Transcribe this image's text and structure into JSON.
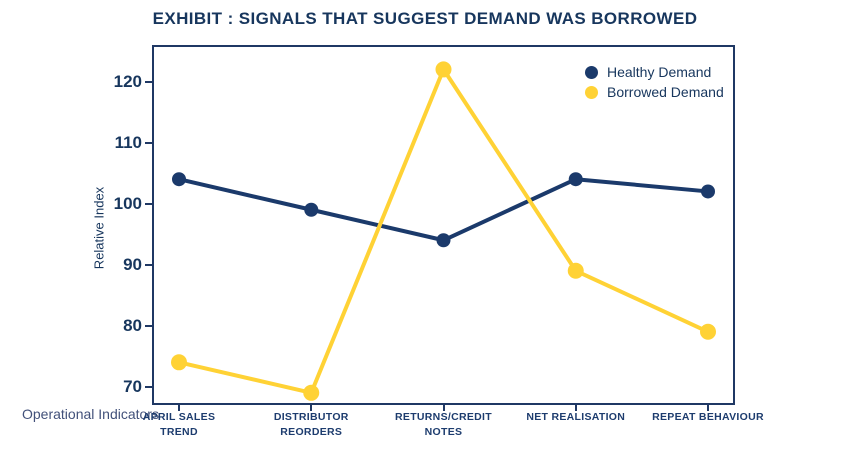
{
  "colors": {
    "navy": "#1b3a6b",
    "yellow": "#ffd235",
    "title_text": "#17365d",
    "axis_text": "#1d3c6e",
    "muted_label": "#42517a",
    "plot_border": "#1f3864"
  },
  "chart_data": {
    "type": "line",
    "title": "EXHIBIT : SIGNALS THAT SUGGEST DEMAND WAS BORROWED",
    "xlabel": "Operational Indicators",
    "ylabel": "Relative Index",
    "categories": [
      "APRIL SALES\nTREND",
      "DISTRIBUTOR\nREORDERS",
      "RETURNS/CREDIT\nNOTES",
      "NET REALISATION",
      "REPEAT BEHAVIOUR"
    ],
    "yticks": [
      70,
      80,
      90,
      100,
      110,
      120
    ],
    "ylim": [
      67,
      126
    ],
    "grid": false,
    "legend_position": "top-right-inside",
    "series": [
      {
        "name": "Healthy Demand",
        "color": "#1b3a6b",
        "marker_radius": 7,
        "values": [
          104,
          99,
          94,
          104,
          102
        ]
      },
      {
        "name": "Borrowed Demand",
        "color": "#ffd235",
        "marker_radius": 8,
        "values": [
          74,
          69,
          122,
          89,
          79
        ]
      }
    ]
  }
}
